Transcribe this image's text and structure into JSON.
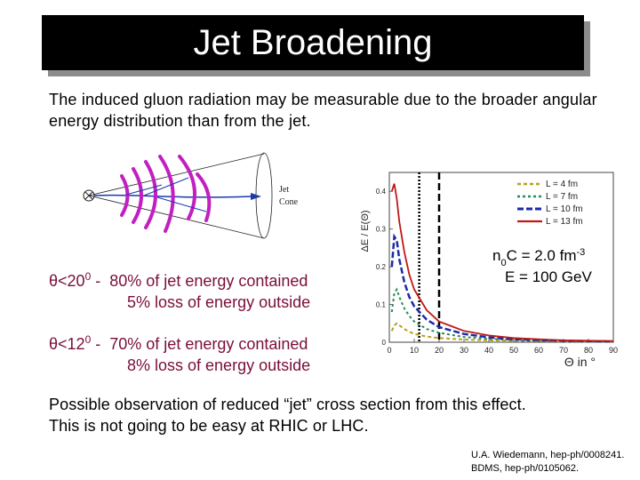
{
  "slide": {
    "title": "Jet Broadening",
    "intro": "The induced gluon radiation may be measurable due to the broader angular energy distribution than from the jet.",
    "jet_diagram": {
      "label_line1": "Jet",
      "label_line2": "Cone"
    },
    "cuts": [
      {
        "symbol": "θ",
        "condition": "<20",
        "superscript": "0",
        "dash": " - ",
        "contained": "80% of jet energy contained",
        "loss": "5% loss of energy outside"
      },
      {
        "symbol": "θ",
        "condition": "<12",
        "superscript": "0",
        "dash": " - ",
        "contained": "70% of jet energy contained",
        "loss": "8% loss of energy outside"
      }
    ],
    "conclusion_line1": "Possible observation of reduced “jet” cross section from this effect.",
    "conclusion_line2": "This is not going to be easy at RHIC or LHC.",
    "references": [
      "U.A. Wiedemann, hep-ph/0008241.",
      "BDMS, hep-ph/0105062."
    ]
  },
  "chart_data": {
    "type": "line",
    "ylabel": "ΔE / E(Θ)",
    "xlabel": "Θ in °",
    "xlim": [
      0,
      90
    ],
    "ylim": [
      0,
      0.45
    ],
    "x_ticks": [
      "0",
      "10",
      "20",
      "30",
      "40",
      "50",
      "60",
      "70",
      "80",
      "90"
    ],
    "y_ticks": [
      "0",
      "0.1",
      "0.2",
      "0.3",
      "0.4"
    ],
    "vertical_markers": [
      12,
      20
    ],
    "annotation_line1_prefix": "n",
    "annotation_line1_sub": "0",
    "annotation_line1_mid": "C = 2.0 fm",
    "annotation_line1_sup": "-3",
    "annotation_line2": "E = 100 GeV",
    "colors": {
      "L4": "#b8a020",
      "L7": "#2a8a5a",
      "L10": "#1a2aa8",
      "L13": "#c01818"
    },
    "series": [
      {
        "name": "L = 4 fm",
        "x": [
          1,
          2,
          3,
          4,
          6,
          8,
          10,
          15,
          20,
          30,
          40,
          50,
          60,
          70,
          80,
          90
        ],
        "y": [
          0.03,
          0.045,
          0.05,
          0.045,
          0.035,
          0.028,
          0.022,
          0.015,
          0.011,
          0.007,
          0.005,
          0.004,
          0.003,
          0.002,
          0.002,
          0.001
        ]
      },
      {
        "name": "L = 7 fm",
        "x": [
          1,
          2,
          3,
          4,
          6,
          8,
          10,
          15,
          20,
          30,
          40,
          50,
          60,
          70,
          80,
          90
        ],
        "y": [
          0.08,
          0.13,
          0.14,
          0.12,
          0.09,
          0.07,
          0.055,
          0.035,
          0.025,
          0.014,
          0.009,
          0.006,
          0.004,
          0.003,
          0.002,
          0.002
        ]
      },
      {
        "name": "L = 10 fm",
        "x": [
          1,
          2,
          3,
          4,
          6,
          8,
          10,
          15,
          20,
          30,
          40,
          50,
          60,
          70,
          80,
          90
        ],
        "y": [
          0.2,
          0.28,
          0.27,
          0.22,
          0.16,
          0.12,
          0.095,
          0.06,
          0.04,
          0.022,
          0.013,
          0.008,
          0.006,
          0.004,
          0.003,
          0.002
        ]
      },
      {
        "name": "L = 13 fm",
        "x": [
          1,
          2,
          3,
          4,
          6,
          8,
          10,
          15,
          20,
          30,
          40,
          50,
          60,
          70,
          80,
          90
        ],
        "y": [
          0.4,
          0.42,
          0.38,
          0.32,
          0.24,
          0.18,
          0.14,
          0.085,
          0.055,
          0.03,
          0.018,
          0.011,
          0.008,
          0.005,
          0.004,
          0.003
        ]
      }
    ]
  }
}
